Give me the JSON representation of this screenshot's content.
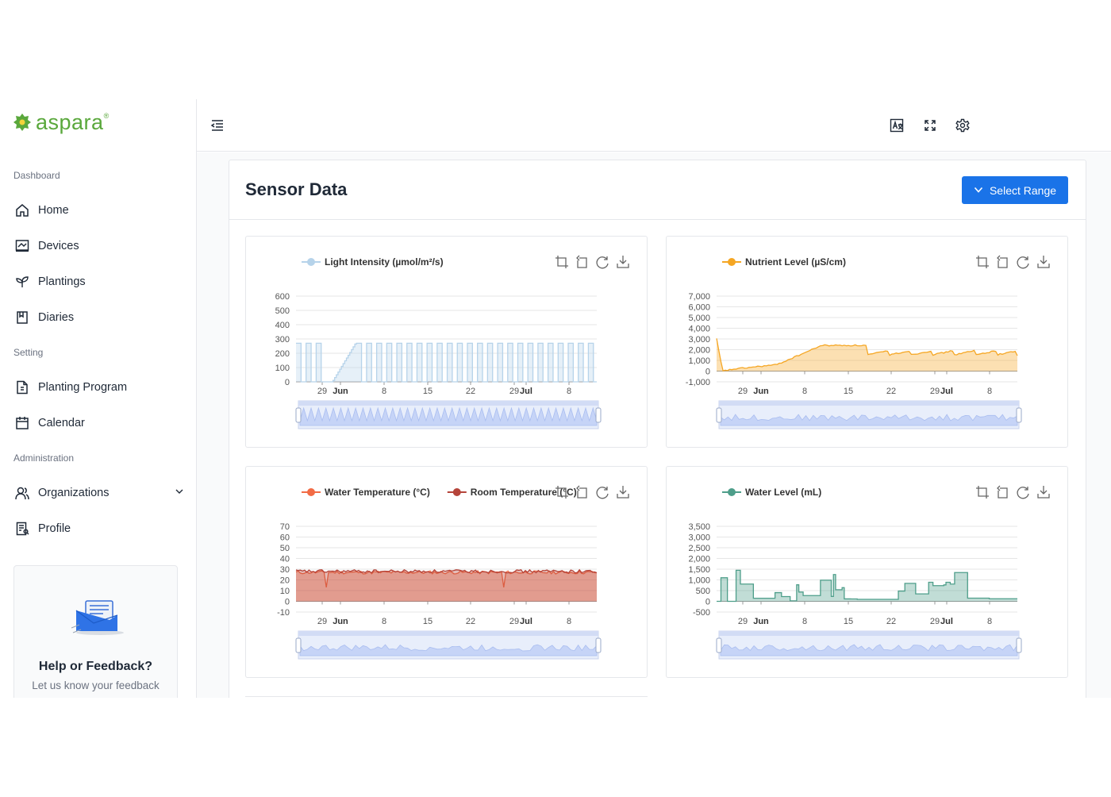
{
  "app": {
    "logo_text": "aspara",
    "logo_reg": "®"
  },
  "sidebar": {
    "sections": [
      {
        "label": "Dashboard",
        "items": [
          {
            "label": "Home",
            "icon": "home-icon"
          },
          {
            "label": "Devices",
            "icon": "devices-icon"
          },
          {
            "label": "Plantings",
            "icon": "sprout-icon"
          },
          {
            "label": "Diaries",
            "icon": "book-icon"
          }
        ]
      },
      {
        "label": "Setting",
        "items": [
          {
            "label": "Planting Program",
            "icon": "document-icon"
          },
          {
            "label": "Calendar",
            "icon": "calendar-icon"
          }
        ]
      },
      {
        "label": "Administration",
        "items": [
          {
            "label": "Organizations",
            "icon": "users-icon"
          },
          {
            "label": "Profile",
            "icon": "profile-icon"
          }
        ]
      }
    ],
    "help": {
      "title": "Help or Feedback?",
      "subtitle": "Let us know your feedback"
    }
  },
  "header": {
    "icons": [
      "collapse-menu-icon",
      "translate-icon",
      "fullscreen-icon",
      "settings-icon"
    ]
  },
  "main": {
    "title": "Sensor Data",
    "select_range_label": "Select Range"
  },
  "colors": {
    "accent": "#1a73e8",
    "brand": "#5aa83c",
    "light": "#b6d3ea",
    "nutrient": "#f5a623",
    "water_temp": "#f26b45",
    "room_temp": "#b5443a",
    "water_level": "#4e9e8a"
  },
  "chart_data": [
    {
      "type": "area",
      "id": "light",
      "x_ticks": [
        "29",
        "Jun",
        "8",
        "15",
        "22",
        "29",
        "Jul",
        "8"
      ],
      "ylim": [
        0,
        600
      ],
      "y_ticks": [
        "0",
        "100",
        "200",
        "300",
        "400",
        "500",
        "600"
      ],
      "series": [
        {
          "name": "Light Intensity (µmol/m²/s)",
          "color": "#b6d3ea",
          "pattern": "daily on/off",
          "on_value": 270,
          "off_value": 0
        }
      ],
      "grid": true,
      "legend": "top",
      "toolbox": [
        "zoom",
        "zoom-reset",
        "restore",
        "save-image"
      ],
      "data_zoom": true
    },
    {
      "type": "area",
      "id": "nutrient",
      "x_ticks": [
        "29",
        "Jun",
        "8",
        "15",
        "22",
        "29",
        "Jul",
        "8"
      ],
      "ylim": [
        -1000,
        7000
      ],
      "y_ticks": [
        "-1,000",
        "0",
        "1,000",
        "2,000",
        "3,000",
        "4,000",
        "5,000",
        "6,000",
        "7,000"
      ],
      "series": [
        {
          "name": "Nutrient Level (µS/cm)",
          "color": "#f5a623",
          "x": [
            0,
            0.02,
            0.06,
            0.2,
            0.35,
            0.5,
            0.65,
            0.8,
            1
          ],
          "values": [
            3000,
            0,
            200,
            600,
            2400,
            1500,
            1600,
            1500,
            1400
          ]
        }
      ],
      "grid": true,
      "legend": "top",
      "toolbox": [
        "zoom",
        "zoom-reset",
        "restore",
        "save-image"
      ],
      "data_zoom": true
    },
    {
      "type": "area",
      "id": "temperature",
      "x_ticks": [
        "29",
        "Jun",
        "8",
        "15",
        "22",
        "29",
        "Jul",
        "8"
      ],
      "ylim": [
        -10,
        70
      ],
      "y_ticks": [
        "-10",
        "0",
        "10",
        "20",
        "30",
        "40",
        "50",
        "60",
        "70"
      ],
      "series": [
        {
          "name": "Water Temperature (°C)",
          "color": "#f26b45",
          "mean": 27
        },
        {
          "name": "Room Temperature (°C)",
          "color": "#b5443a",
          "mean": 28
        }
      ],
      "grid": true,
      "legend": "top",
      "toolbox": [
        "zoom",
        "zoom-reset",
        "restore",
        "save-image"
      ],
      "data_zoom": true
    },
    {
      "type": "area",
      "id": "water",
      "x_ticks": [
        "29",
        "Jun",
        "8",
        "15",
        "22",
        "29",
        "Jul",
        "8"
      ],
      "ylim": [
        -500,
        3500
      ],
      "y_ticks": [
        "-500",
        "0",
        "500",
        "1,000",
        "1,500",
        "2,000",
        "2,500",
        "3,000",
        "3,500"
      ],
      "series": [
        {
          "name": "Water Level (mL)",
          "color": "#4e9e8a",
          "range": [
            0,
            1600
          ]
        }
      ],
      "grid": true,
      "legend": "top",
      "toolbox": [
        "zoom",
        "zoom-reset",
        "restore",
        "save-image"
      ],
      "data_zoom": true
    }
  ]
}
